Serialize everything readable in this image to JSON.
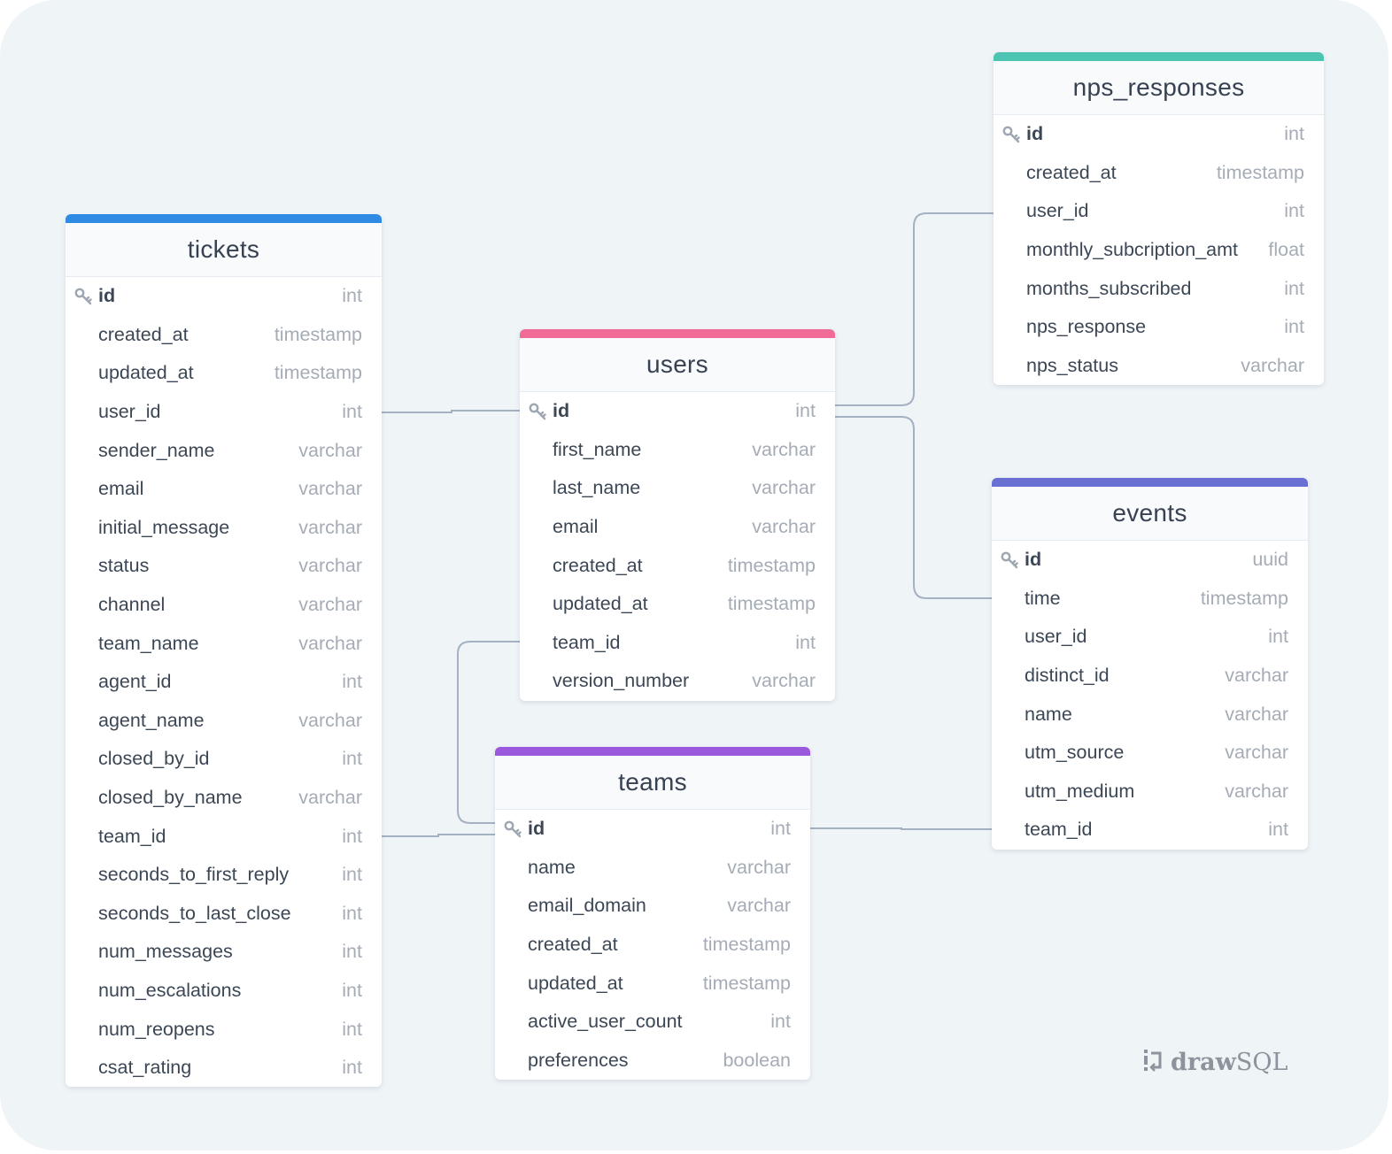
{
  "brand": {
    "bold": "draw",
    "regular": "SQL",
    "icon": "drawsql-logo-icon"
  },
  "colors": {
    "tickets": "#2f8ae3",
    "users": "#f06b96",
    "nps_responses": "#4dc3b1",
    "events": "#6a70d3",
    "teams": "#9a59dd"
  },
  "tables": {
    "tickets": {
      "name": "tickets",
      "fields": [
        {
          "name": "id",
          "type": "int"
        },
        {
          "name": "created_at",
          "type": "timestamp"
        },
        {
          "name": "updated_at",
          "type": "timestamp"
        },
        {
          "name": "user_id",
          "type": "int"
        },
        {
          "name": "sender_name",
          "type": "varchar"
        },
        {
          "name": "email",
          "type": "varchar"
        },
        {
          "name": "initial_message",
          "type": "varchar"
        },
        {
          "name": "status",
          "type": "varchar"
        },
        {
          "name": "channel",
          "type": "varchar"
        },
        {
          "name": "team_name",
          "type": "varchar"
        },
        {
          "name": "agent_id",
          "type": "int"
        },
        {
          "name": "agent_name",
          "type": "varchar"
        },
        {
          "name": "closed_by_id",
          "type": "int"
        },
        {
          "name": "closed_by_name",
          "type": "varchar"
        },
        {
          "name": "team_id",
          "type": "int"
        },
        {
          "name": "seconds_to_first_reply",
          "type": "int"
        },
        {
          "name": "seconds_to_last_close",
          "type": "int"
        },
        {
          "name": "num_messages",
          "type": "int"
        },
        {
          "name": "num_escalations",
          "type": "int"
        },
        {
          "name": "num_reopens",
          "type": "int"
        },
        {
          "name": "csat_rating",
          "type": "int"
        }
      ]
    },
    "users": {
      "name": "users",
      "fields": [
        {
          "name": "id",
          "type": "int"
        },
        {
          "name": "first_name",
          "type": "varchar"
        },
        {
          "name": "last_name",
          "type": "varchar"
        },
        {
          "name": "email",
          "type": "varchar"
        },
        {
          "name": "created_at",
          "type": "timestamp"
        },
        {
          "name": "updated_at",
          "type": "timestamp"
        },
        {
          "name": "team_id",
          "type": "int"
        },
        {
          "name": "version_number",
          "type": "varchar"
        }
      ]
    },
    "nps_responses": {
      "name": "nps_responses",
      "fields": [
        {
          "name": "id",
          "type": "int"
        },
        {
          "name": "created_at",
          "type": "timestamp"
        },
        {
          "name": "user_id",
          "type": "int"
        },
        {
          "name": "monthly_subcription_amt",
          "type": "float"
        },
        {
          "name": "months_subscribed",
          "type": "int"
        },
        {
          "name": "nps_response",
          "type": "int"
        },
        {
          "name": "nps_status",
          "type": "varchar"
        }
      ]
    },
    "events": {
      "name": "events",
      "fields": [
        {
          "name": "id",
          "type": "uuid"
        },
        {
          "name": "time",
          "type": "timestamp"
        },
        {
          "name": "user_id",
          "type": "int"
        },
        {
          "name": "distinct_id",
          "type": "varchar"
        },
        {
          "name": "name",
          "type": "varchar"
        },
        {
          "name": "utm_source",
          "type": "varchar"
        },
        {
          "name": "utm_medium",
          "type": "varchar"
        },
        {
          "name": "team_id",
          "type": "int"
        }
      ]
    },
    "teams": {
      "name": "teams",
      "fields": [
        {
          "name": "id",
          "type": "int"
        },
        {
          "name": "name",
          "type": "varchar"
        },
        {
          "name": "email_domain",
          "type": "varchar"
        },
        {
          "name": "created_at",
          "type": "timestamp"
        },
        {
          "name": "updated_at",
          "type": "timestamp"
        },
        {
          "name": "active_user_count",
          "type": "int"
        },
        {
          "name": "preferences",
          "type": "boolean"
        }
      ]
    }
  },
  "relations": [
    {
      "from": "tickets.user_id",
      "to": "users.id"
    },
    {
      "from": "users.id",
      "to": "nps_responses.user_id"
    },
    {
      "from": "users.id",
      "to": "events.time"
    },
    {
      "from": "users.team_id",
      "to": "teams.id"
    },
    {
      "from": "tickets.team_id",
      "to": "teams.id"
    },
    {
      "from": "teams.id",
      "to": "events.team_id"
    }
  ]
}
